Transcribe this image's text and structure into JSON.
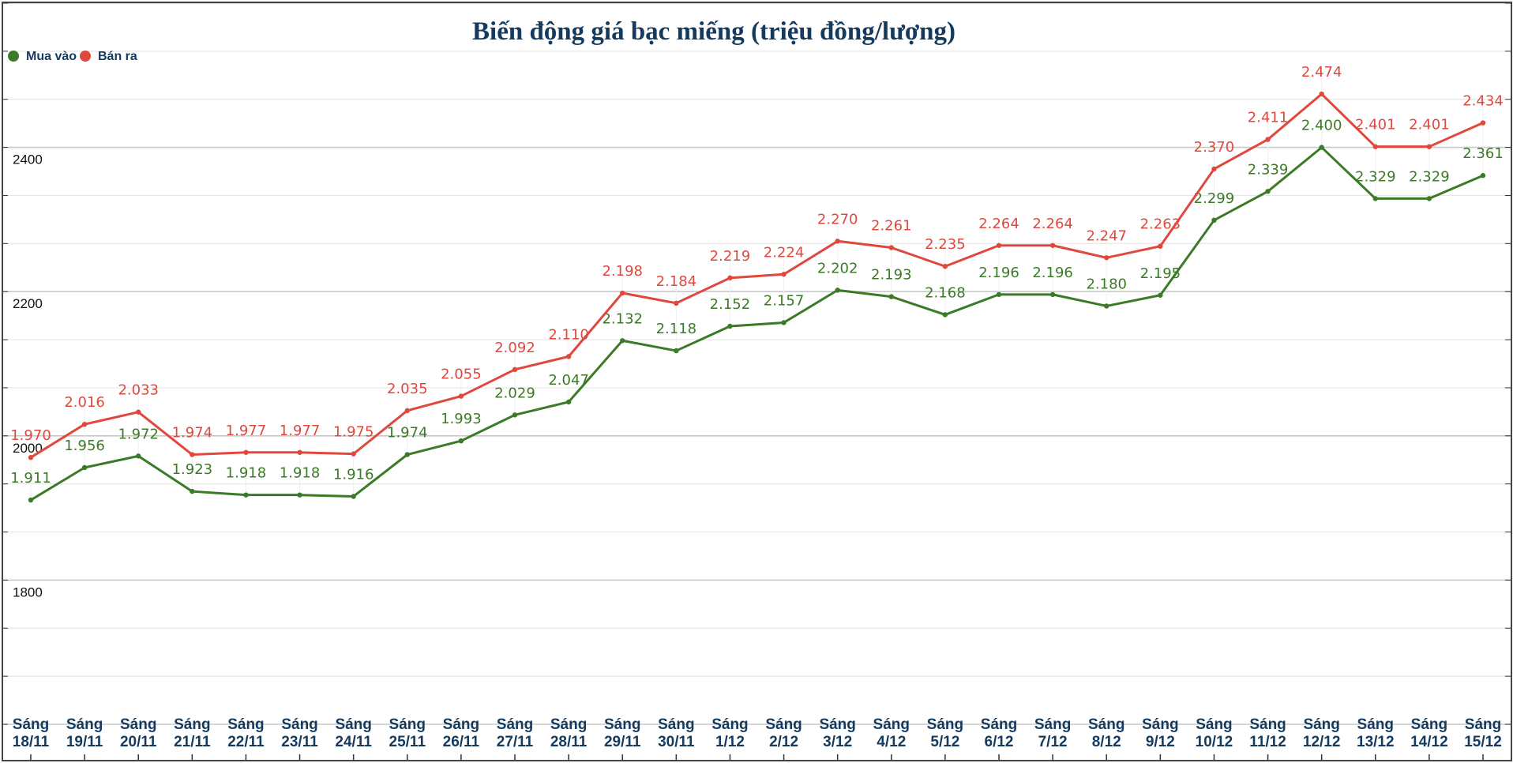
{
  "chart_data": {
    "type": "line",
    "title": "Biến động giá bạc miếng (triệu đồng/lượng)",
    "xlabel": "",
    "ylabel": "",
    "ylim": [
      1600,
      2600
    ],
    "yticks": [
      1800,
      2000,
      2200,
      2400
    ],
    "ytick_labels": [
      "1800",
      "2000",
      "2200",
      "2400"
    ],
    "grid": true,
    "legend_position": "top-left",
    "categories": [
      "Sáng 18/11",
      "Sáng 19/11",
      "Sáng 20/11",
      "Sáng 21/11",
      "Sáng 22/11",
      "Sáng 23/11",
      "Sáng 24/11",
      "Sáng 25/11",
      "Sáng 26/11",
      "Sáng 27/11",
      "Sáng 28/11",
      "Sáng 29/11",
      "Sáng 30/11",
      "Sáng 1/12",
      "Sáng 2/12",
      "Sáng 3/12",
      "Sáng 4/12",
      "Sáng 5/12",
      "Sáng 6/12",
      "Sáng 7/12",
      "Sáng 8/12",
      "Sáng 9/12",
      "Sáng 10/12",
      "Sáng 11/12",
      "Sáng 12/12",
      "Sáng 13/12",
      "Sáng 14/12",
      "Sáng 15/12"
    ],
    "series": [
      {
        "name": "Mua vào",
        "color": "#3b7a26",
        "values": [
          1911,
          1956,
          1972,
          1923,
          1918,
          1918,
          1916,
          1974,
          1993,
          2029,
          2047,
          2132,
          2118,
          2152,
          2157,
          2202,
          2193,
          2168,
          2196,
          2196,
          2180,
          2195,
          2299,
          2339,
          2400,
          2329,
          2329,
          2361
        ],
        "labels": [
          "1.911",
          "1.956",
          "1.972",
          "1.923",
          "1.918",
          "1.918",
          "1.916",
          "1.974",
          "1.993",
          "2.029",
          "2.047",
          "2.132",
          "2.118",
          "2.152",
          "2.157",
          "2.202",
          "2.193",
          "2.168",
          "2.196",
          "2.196",
          "2.180",
          "2.195",
          "2.299",
          "2.339",
          "2.400",
          "2.329",
          "2.329",
          "2.361"
        ]
      },
      {
        "name": "Bán ra",
        "color": "#e0483d",
        "values": [
          1970,
          2016,
          2033,
          1974,
          1977,
          1977,
          1975,
          2035,
          2055,
          2092,
          2110,
          2198,
          2184,
          2219,
          2224,
          2270,
          2261,
          2235,
          2264,
          2264,
          2247,
          2263,
          2370,
          2411,
          2474,
          2401,
          2401,
          2434
        ],
        "labels": [
          "1.970",
          "2.016",
          "2.033",
          "1.974",
          "1.977",
          "1.977",
          "1.975",
          "2.035",
          "2.055",
          "2.092",
          "2.110",
          "2.198",
          "2.184",
          "2.219",
          "2.224",
          "2.270",
          "2.261",
          "2.235",
          "2.264",
          "2.264",
          "2.247",
          "2.263",
          "2.370",
          "2.411",
          "2.474",
          "2.401",
          "2.401",
          "2.434"
        ]
      }
    ]
  }
}
